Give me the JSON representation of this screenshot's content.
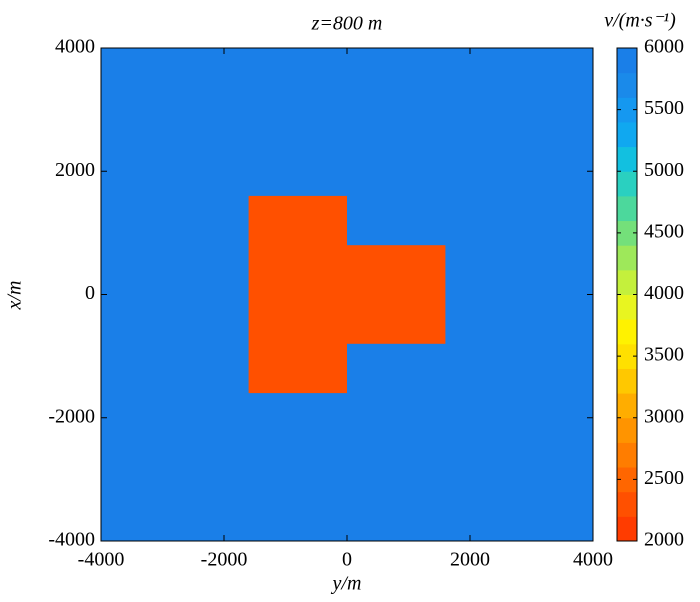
{
  "chart_data": {
    "type": "heatmap",
    "title": "z=800 m",
    "xlabel": "y/m",
    "ylabel": "x/m",
    "xlim": [
      -4000,
      4000
    ],
    "xticks": [
      -4000,
      -2000,
      0,
      2000,
      4000
    ],
    "ylim": [
      -4000,
      4000
    ],
    "yticks": [
      -4000,
      -2000,
      0,
      2000,
      4000
    ],
    "regions": [
      {
        "xrange": [
          -4000,
          4000
        ],
        "yrange": [
          -4000,
          4000
        ],
        "value": 5800
      },
      {
        "xrange": [
          -1600,
          1600
        ],
        "yrange": [
          -1600,
          0
        ],
        "value": 2200
      },
      {
        "xrange": [
          -800,
          800
        ],
        "yrange": [
          0,
          1600
        ],
        "value": 2200
      }
    ],
    "colorbar": {
      "label": "v/(m·s⁻¹)",
      "lim": [
        2000,
        6000
      ],
      "ticks": [
        2000,
        2500,
        3000,
        3500,
        4000,
        4500,
        5000,
        5500,
        6000
      ],
      "colors": [
        "#ff3c00",
        "#ff5000",
        "#ff6600",
        "#ff7d00",
        "#ff9400",
        "#ffad00",
        "#ffc800",
        "#ffe000",
        "#fff200",
        "#e8f520",
        "#c4f03c",
        "#9ee85a",
        "#74e07a",
        "#4cd89c",
        "#2ad0c0",
        "#12c0e0",
        "#10a8f0",
        "#1598f0",
        "#1a8aea",
        "#1a7fe8"
      ]
    }
  }
}
